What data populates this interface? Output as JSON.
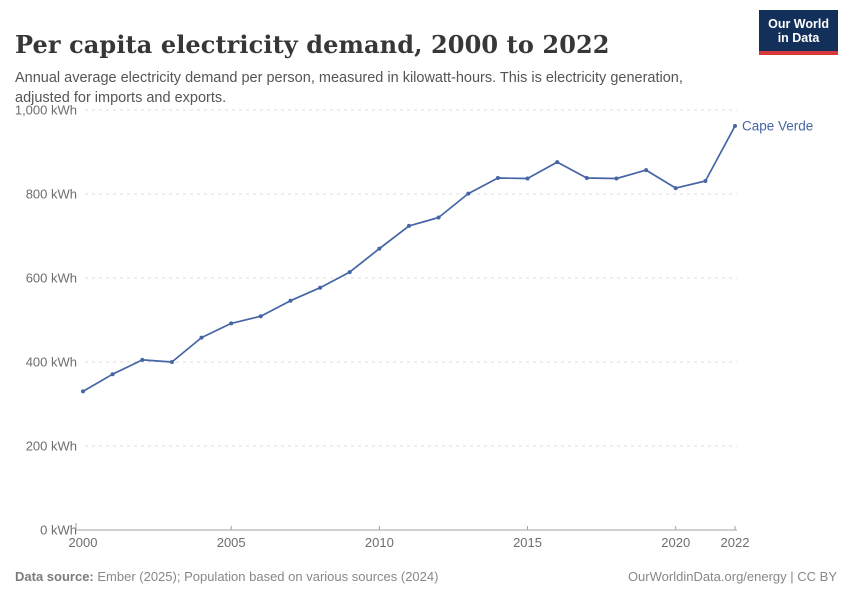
{
  "header": {
    "title": "Per capita electricity demand, 2000 to 2022",
    "subtitle": "Annual average electricity demand per person, measured in kilowatt-hours. This is electricity generation, adjusted for imports and exports."
  },
  "logo": {
    "line1": "Our World",
    "line2": "in Data",
    "bg_color": "#12305a",
    "accent_color": "#d7383e"
  },
  "chart_data": {
    "type": "line",
    "title": "Per capita electricity demand, 2000 to 2022",
    "unit": "kWh",
    "x": [
      2000,
      2001,
      2002,
      2003,
      2004,
      2005,
      2006,
      2007,
      2008,
      2009,
      2010,
      2011,
      2012,
      2013,
      2014,
      2015,
      2016,
      2017,
      2018,
      2019,
      2020,
      2021,
      2022
    ],
    "series": [
      {
        "name": "Cape Verde",
        "values": [
          330,
          371,
          405,
          400,
          458,
          492,
          509,
          546,
          577,
          614,
          670,
          724,
          744,
          801,
          838,
          837,
          876,
          838,
          837,
          857,
          814,
          831,
          962
        ]
      }
    ],
    "entity_label": "Cape Verde",
    "xlabel": "",
    "ylabel": "",
    "xlim": [
      2000,
      2022
    ],
    "ylim": [
      0,
      1000
    ],
    "yticks": [
      0,
      200,
      400,
      600,
      800,
      1000
    ],
    "ytick_labels": [
      "0 kWh",
      "200 kWh",
      "400 kWh",
      "600 kWh",
      "800 kWh",
      "1,000 kWh"
    ],
    "xticks": [
      2000,
      2005,
      2010,
      2015,
      2020,
      2022
    ],
    "xtick_labels": [
      "2000",
      "2005",
      "2010",
      "2015",
      "2020",
      "2022"
    ],
    "grid": true,
    "legend_position": "end-of-line",
    "line_color": "#4565a5",
    "grid_color": "#dcdcdc",
    "axis_color": "#a0a0a0",
    "tick_text_color": "#6e6e6e"
  },
  "footer": {
    "datasource_label": "Data source:",
    "datasource_text": " Ember (2025); Population based on various sources (2024)",
    "right_text": "OurWorldinData.org/energy | CC BY"
  }
}
